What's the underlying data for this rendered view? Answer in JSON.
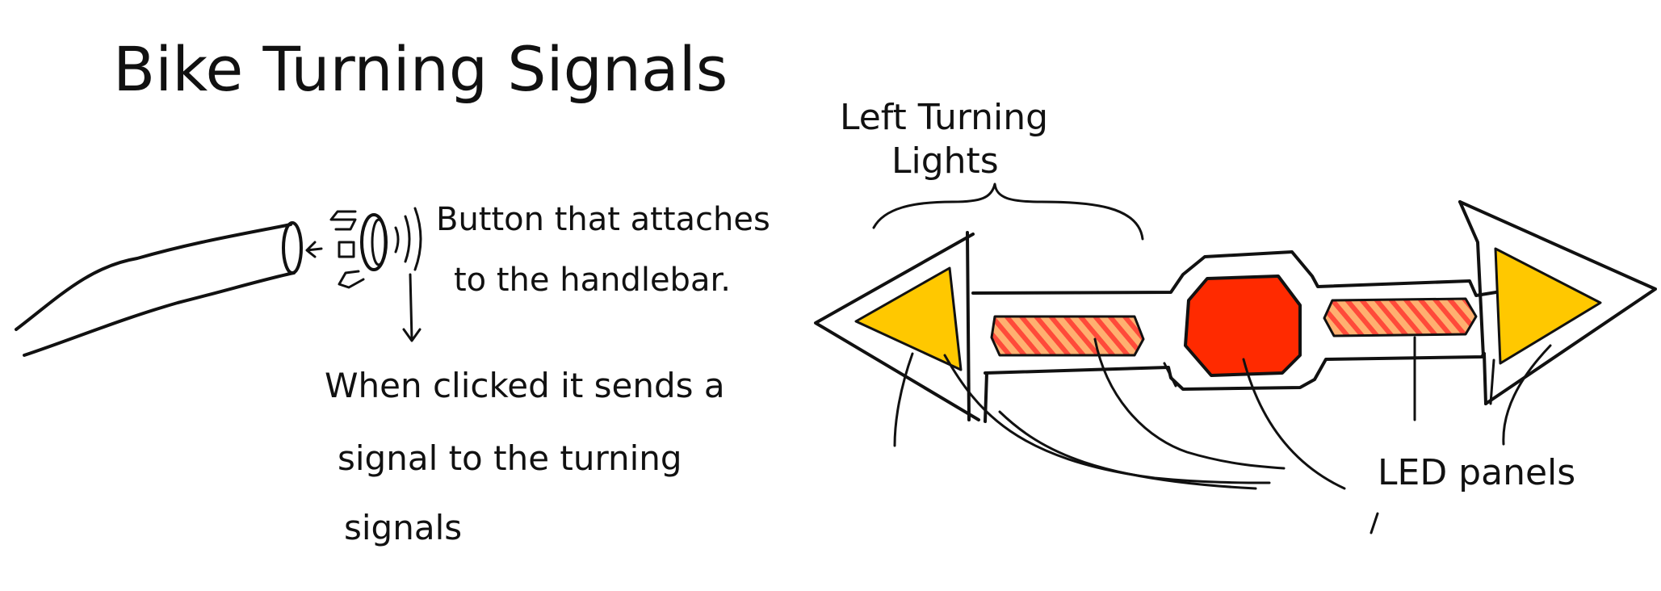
{
  "title": "Bike Turning Signals",
  "left_annotation": {
    "button_note_line1": "Button that attaches",
    "button_note_line2": "to the handlebar.",
    "click_note_line1": "When clicked it sends a",
    "click_note_line2": "signal to the turning",
    "click_note_line3": "signals"
  },
  "right_annotation": {
    "left_lights_line1": "Left Turning",
    "left_lights_line2": "Lights",
    "led_label": "LED panels"
  },
  "colors": {
    "ink": "#111111",
    "arrow_yellow": "#FFC800",
    "center_red": "#FF2A00",
    "stripe_orange": "#FFB070",
    "stripe_red": "#FF4A3A"
  }
}
